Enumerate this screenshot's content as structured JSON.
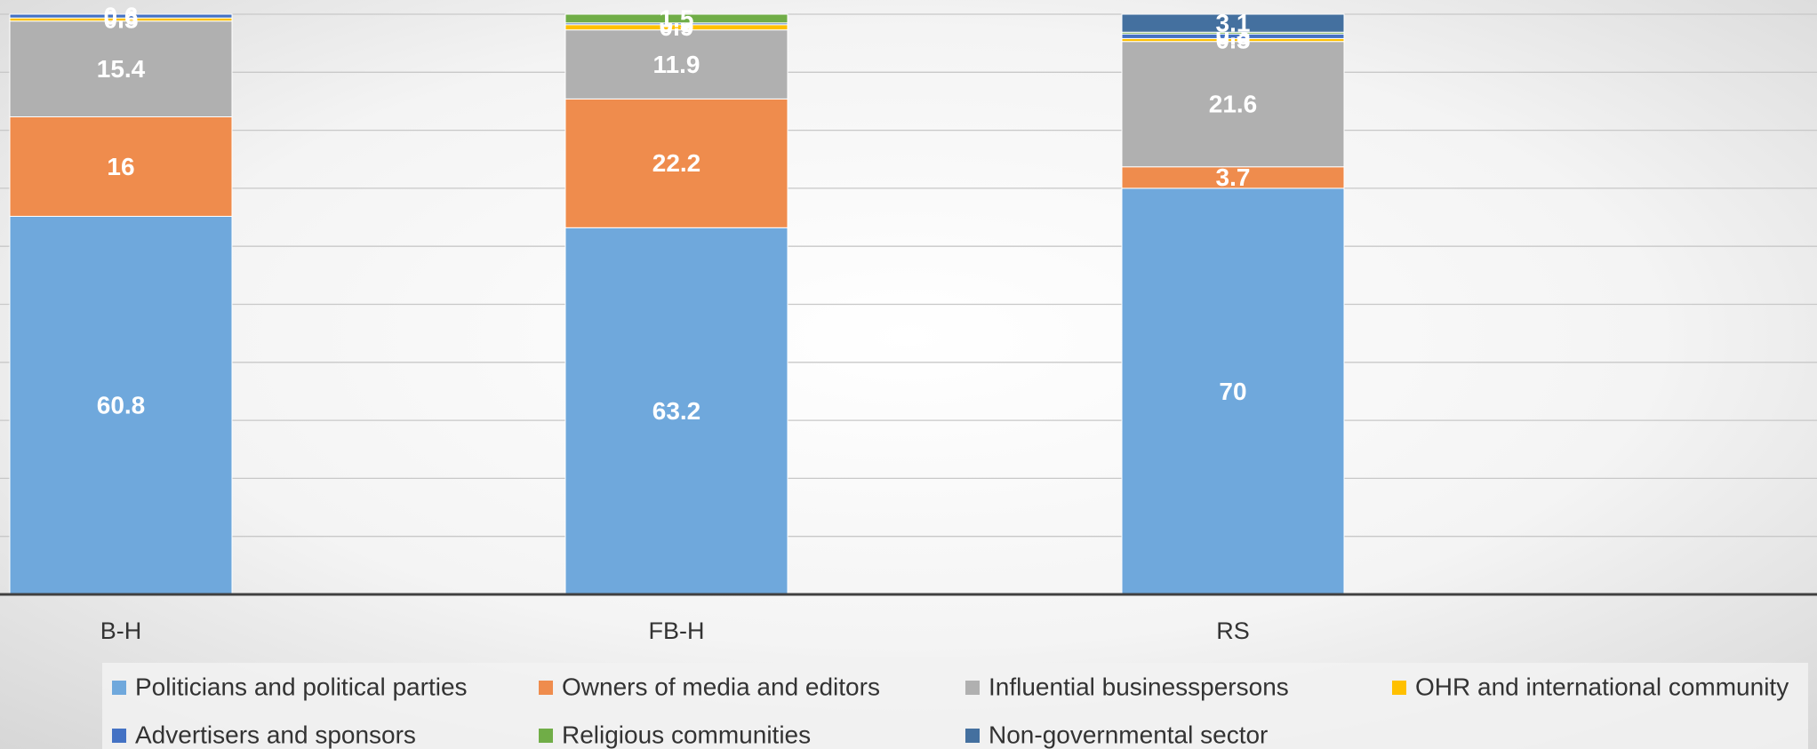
{
  "chart_data": {
    "type": "stacked_bar_100",
    "categories": [
      "B-H",
      "FB-H",
      "RS"
    ],
    "series": [
      {
        "name": "Politicians and political parties",
        "color": "#6fa8dc",
        "values": [
          60.8,
          63.2,
          70
        ]
      },
      {
        "name": "Owners of media and editors",
        "color": "#ef8c4d",
        "values": [
          16,
          22.2,
          3.7
        ]
      },
      {
        "name": "Influential businesspersons",
        "color": "#b0b0b0",
        "values": [
          15.4,
          11.9,
          21.6
        ]
      },
      {
        "name": "OHR and international community",
        "color": "#ffc000",
        "values": [
          0.5,
          0.9,
          0.5
        ]
      },
      {
        "name": "Advertisers and sponsors",
        "color": "#4472c4",
        "values": [
          0.6,
          0.3,
          0.8
        ]
      },
      {
        "name": "Religious communities",
        "color": "#70ad47",
        "values": [
          null,
          1.5,
          0.3
        ]
      },
      {
        "name": "Non-governmental sector",
        "color": "#44709f",
        "values": [
          null,
          null,
          3.1
        ]
      }
    ],
    "ylim": [
      0,
      100
    ],
    "yticks": [
      0,
      10,
      20,
      30,
      40,
      50,
      60,
      70,
      80,
      90,
      100
    ],
    "grid": true,
    "legend": "bottom"
  }
}
